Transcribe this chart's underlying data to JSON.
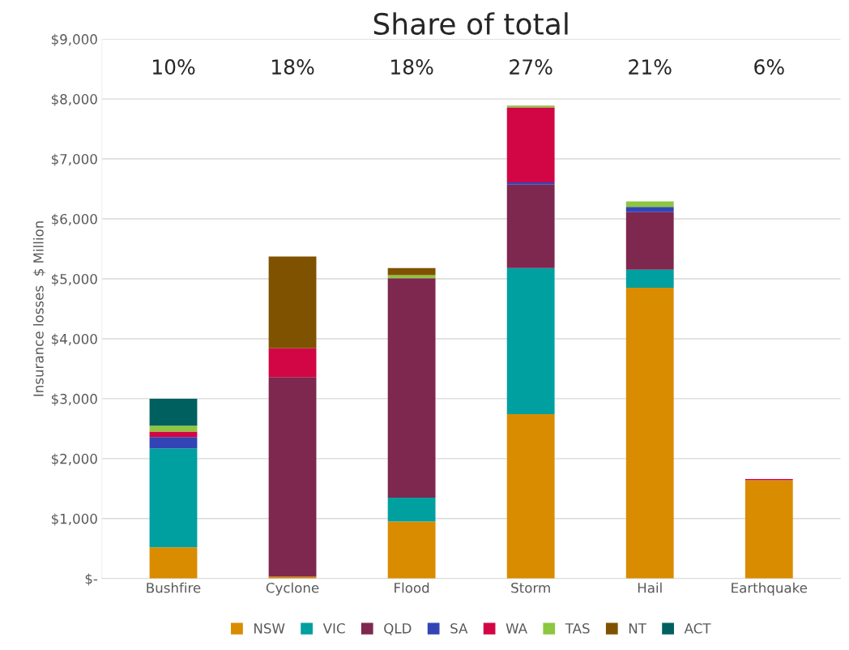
{
  "chart_data": {
    "type": "bar",
    "title": "Share of total",
    "ylabel": "Insurance losses  $ Million",
    "categories": [
      "Bushfire",
      "Cyclone",
      "Flood",
      "Storm",
      "Hail",
      "Earthquake"
    ],
    "stacked": true,
    "series": [
      {
        "name": "NSW",
        "color": "#d98c00",
        "values": [
          520,
          30,
          950,
          2740,
          4850,
          1640
        ]
      },
      {
        "name": "VIC",
        "color": "#009fa0",
        "values": [
          1650,
          0,
          400,
          2440,
          300,
          0
        ]
      },
      {
        "name": "QLD",
        "color": "#7e274f",
        "values": [
          0,
          3330,
          3660,
          1390,
          960,
          0
        ]
      },
      {
        "name": "SA",
        "color": "#3344b4",
        "values": [
          190,
          0,
          0,
          40,
          90,
          0
        ]
      },
      {
        "name": "WA",
        "color": "#d20645",
        "values": [
          90,
          480,
          0,
          1250,
          0,
          20
        ]
      },
      {
        "name": "TAS",
        "color": "#8dc63f",
        "values": [
          100,
          0,
          50,
          30,
          90,
          0
        ]
      },
      {
        "name": "NT",
        "color": "#7f5200",
        "values": [
          0,
          1530,
          120,
          0,
          0,
          0
        ]
      },
      {
        "name": "ACT",
        "color": "#006060",
        "values": [
          450,
          0,
          0,
          0,
          0,
          0
        ]
      }
    ],
    "ylim": [
      0,
      9000
    ],
    "yticks": [
      {
        "value": 0,
        "label": "$-"
      },
      {
        "value": 1000,
        "label": "$1,000"
      },
      {
        "value": 2000,
        "label": "$2,000"
      },
      {
        "value": 3000,
        "label": "$3,000"
      },
      {
        "value": 4000,
        "label": "$4,000"
      },
      {
        "value": 5000,
        "label": "$5,000"
      },
      {
        "value": 6000,
        "label": "$6,000"
      },
      {
        "value": 7000,
        "label": "$7,000"
      },
      {
        "value": 8000,
        "label": "$8,000"
      },
      {
        "value": 9000,
        "label": "$9,000"
      }
    ],
    "annotations": [
      "10%",
      "18%",
      "18%",
      "27%",
      "21%",
      "6%"
    ],
    "grid": "y",
    "legend": "bottom"
  }
}
